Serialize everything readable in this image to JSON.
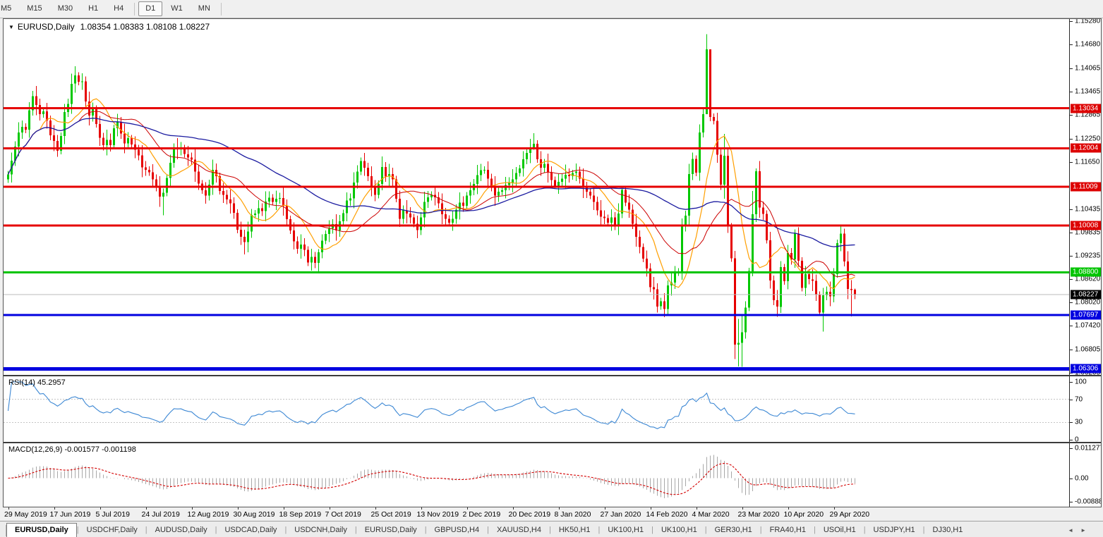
{
  "toolbar": {
    "timeframes": [
      "M5",
      "M15",
      "M30",
      "H1",
      "H4",
      "D1",
      "W1",
      "MN"
    ],
    "active": "D1"
  },
  "chart": {
    "symbol": "EURUSD,Daily",
    "ohlc": "1.08354 1.08383 1.08108 1.08227"
  },
  "icons": {
    "dropdown": "▼",
    "scroll_left": "◄",
    "scroll_right": "►"
  },
  "price_axis": {
    "ticks": [
      1.1528,
      1.1468,
      1.14065,
      1.13465,
      1.12865,
      1.1225,
      1.1165,
      1.10435,
      1.09835,
      1.09235,
      1.0862,
      1.0802,
      1.0742,
      1.06805,
      1.06205
    ],
    "badges": [
      {
        "v": 1.13034,
        "color": "#dd0000"
      },
      {
        "v": 1.12004,
        "color": "#dd0000"
      },
      {
        "v": 1.11009,
        "color": "#dd0000"
      },
      {
        "v": 1.10008,
        "color": "#dd0000"
      },
      {
        "v": 1.088,
        "color": "#00c400"
      },
      {
        "v": 1.08227,
        "color": "#000000"
      },
      {
        "v": 1.07697,
        "color": "#0000e0"
      },
      {
        "v": 1.06306,
        "color": "#0000e0"
      }
    ]
  },
  "time_axis": {
    "labels": [
      {
        "i": 0,
        "label": "29 May 2019"
      },
      {
        "i": 13,
        "label": "17 Jun 2019"
      },
      {
        "i": 26,
        "label": "5 Jul 2019"
      },
      {
        "i": 39,
        "label": "24 Jul 2019"
      },
      {
        "i": 52,
        "label": "12 Aug 2019"
      },
      {
        "i": 65,
        "label": "30 Aug 2019"
      },
      {
        "i": 78,
        "label": "18 Sep 2019"
      },
      {
        "i": 91,
        "label": "7 Oct 2019"
      },
      {
        "i": 104,
        "label": "25 Oct 2019"
      },
      {
        "i": 117,
        "label": "13 Nov 2019"
      },
      {
        "i": 130,
        "label": "2 Dec 2019"
      },
      {
        "i": 143,
        "label": "20 Dec 2019"
      },
      {
        "i": 156,
        "label": "8 Jan 2020"
      },
      {
        "i": 169,
        "label": "27 Jan 2020"
      },
      {
        "i": 182,
        "label": "14 Feb 2020"
      },
      {
        "i": 195,
        "label": "4 Mar 2020"
      },
      {
        "i": 208,
        "label": "23 Mar 2020"
      },
      {
        "i": 221,
        "label": "10 Apr 2020"
      },
      {
        "i": 234,
        "label": "29 Apr 2020"
      }
    ]
  },
  "rsi": {
    "label": "RSI(14)",
    "value": "45.2957",
    "color": "#3d88d4",
    "levels": [
      70,
      30
    ],
    "scale": [
      {
        "v": 100,
        "label": "100"
      },
      {
        "v": 70,
        "label": "70"
      },
      {
        "v": 30,
        "label": "30"
      },
      {
        "v": 0,
        "label": "0"
      }
    ]
  },
  "macd": {
    "label": "MACD(12,26,9)",
    "values": "-0.001577 -0.001198",
    "hist_color": "#a8a8a8",
    "signal_color": "#d40000",
    "scale": [
      {
        "v": 0.011277,
        "label": "0.011277"
      },
      {
        "v": 0,
        "label": "0.00"
      },
      {
        "v": -0.0088845,
        "label": "-0.0088845"
      }
    ]
  },
  "tabs": [
    {
      "label": "EURUSD,Daily",
      "active": true
    },
    {
      "label": "USDCHF,Daily",
      "active": false
    },
    {
      "label": "AUDUSD,Daily",
      "active": false
    },
    {
      "label": "USDCAD,Daily",
      "active": false
    },
    {
      "label": "USDCNH,Daily",
      "active": false
    },
    {
      "label": "EURUSD,Daily",
      "active": false
    },
    {
      "label": "GBPUSD,H4",
      "active": false
    },
    {
      "label": "XAUUSD,H4",
      "active": false
    },
    {
      "label": "HK50,H1",
      "active": false
    },
    {
      "label": "UK100,H1",
      "active": false
    },
    {
      "label": "UK100,H1",
      "active": false
    },
    {
      "label": "GER30,H1",
      "active": false
    },
    {
      "label": "FRA40,H1",
      "active": false
    },
    {
      "label": "USOil,H1",
      "active": false
    },
    {
      "label": "USDJPY,H1",
      "active": false
    },
    {
      "label": "DJ30,H1",
      "active": false
    }
  ],
  "chart_data": {
    "type": "candlestick",
    "symbol": "EURUSD",
    "timeframe": "Daily",
    "title": "EURUSD,Daily 1.08354 1.08383 1.08108 1.08227",
    "price_range": {
      "top": 1.1534,
      "bottom": 1.0615
    },
    "up_color": "#00c800",
    "down_color": "#e60000",
    "first_open": 1.112,
    "last_open": 1.08354,
    "closes": [
      1.1133,
      1.1168,
      1.1205,
      1.1241,
      1.1256,
      1.1248,
      1.1298,
      1.1335,
      1.1312,
      1.1288,
      1.1296,
      1.1272,
      1.1234,
      1.1219,
      1.1194,
      1.1232,
      1.1294,
      1.1315,
      1.1367,
      1.1388,
      1.1372,
      1.1373,
      1.1321,
      1.1285,
      1.1302,
      1.1263,
      1.1227,
      1.1208,
      1.1222,
      1.1208,
      1.1252,
      1.1268,
      1.1238,
      1.1213,
      1.1226,
      1.121,
      1.1196,
      1.1182,
      1.1151,
      1.1145,
      1.1138,
      1.112,
      1.1102,
      1.1075,
      1.1085,
      1.1124,
      1.1163,
      1.12,
      1.1198,
      1.12,
      1.1185,
      1.1176,
      1.1171,
      1.114,
      1.1109,
      1.1092,
      1.1078,
      1.1106,
      1.1145,
      1.1128,
      1.109,
      1.108,
      1.1068,
      1.1058,
      1.1034,
      1.099,
      1.0972,
      1.0958,
      1.0985,
      1.1028,
      1.1032,
      1.1045,
      1.1038,
      1.1063,
      1.1073,
      1.1062,
      1.107,
      1.1072,
      1.1052,
      1.1017,
      1.0988,
      1.096,
      1.0941,
      1.0952,
      1.0938,
      1.0905,
      1.092,
      1.0904,
      1.0932,
      1.0962,
      1.0979,
      1.0993,
      1.1004,
      1.0988,
      1.1012,
      1.1033,
      1.1065,
      1.1071,
      1.1112,
      1.114,
      1.1167,
      1.115,
      1.1128,
      1.1102,
      1.108,
      1.1108,
      1.1152,
      1.1127,
      1.1134,
      1.112,
      1.107,
      1.1018,
      1.104,
      1.1032,
      1.1022,
      1.1005,
      1.0989,
      1.1022,
      1.1062,
      1.1074,
      1.108,
      1.1074,
      1.1058,
      1.103,
      1.1018,
      1.1008,
      1.1018,
      1.1042,
      1.106,
      1.1052,
      1.1078,
      1.1092,
      1.1108,
      1.1131,
      1.1144,
      1.1145,
      1.1122,
      1.1102,
      1.1078,
      1.1088,
      1.1092,
      1.1105,
      1.1112,
      1.112,
      1.1136,
      1.1148,
      1.1172,
      1.1188,
      1.1199,
      1.1212,
      1.1172,
      1.115,
      1.116,
      1.1138,
      1.1118,
      1.1104,
      1.1114,
      1.1122,
      1.1132,
      1.1128,
      1.1136,
      1.114,
      1.1122,
      1.1098,
      1.1088,
      1.1078,
      1.1062,
      1.104,
      1.1024,
      1.102,
      1.1008,
      1.1022,
      1.1002,
      1.1032,
      1.1093,
      1.106,
      1.1042,
      1.1005,
      1.0972,
      1.0945,
      1.0915,
      1.089,
      1.0842,
      1.0836,
      1.0792,
      1.0805,
      1.0785,
      1.0846,
      1.0853,
      1.088,
      1.0882,
      1.0998,
      1.1026,
      1.1134,
      1.1173,
      1.1137,
      1.1241,
      1.1288,
      1.1456,
      1.1281,
      1.1271,
      1.1184,
      1.1106,
      1.1181,
      1.0998,
      1.0916,
      1.0693,
      1.0698,
      1.0725,
      1.0789,
      1.0883,
      1.103,
      1.1141,
      1.1047,
      1.1031,
      1.0963,
      1.0859,
      1.0808,
      1.0791,
      1.0893,
      1.0857,
      1.093,
      1.0913,
      1.098,
      1.091,
      1.084,
      1.0875,
      1.0862,
      1.0858,
      1.0822,
      1.0776,
      1.0821,
      1.083,
      1.0818,
      1.0875,
      1.0955,
      1.098,
      1.0908,
      1.0837,
      1.0834,
      1.08227
    ],
    "wick_cycle": [
      0.0009,
      0.0021,
      0.0013,
      0.0026,
      0.0016
    ],
    "wick_overrides": {
      "19": [
        1.1412,
        1.1344
      ],
      "44": [
        1.1096,
        1.1027
      ],
      "67": [
        1.099,
        1.0926
      ],
      "88": [
        1.094,
        1.0879
      ],
      "106": [
        1.1179,
        1.1092
      ],
      "149": [
        1.1239,
        1.1196
      ],
      "174": [
        1.1096,
        1.102
      ],
      "198": [
        1.1495,
        1.1289
      ],
      "199": [
        1.136,
        1.127
      ],
      "203": [
        1.1237,
        1.107
      ],
      "206": [
        1.0935,
        1.0656
      ],
      "207": [
        1.076,
        1.0637
      ],
      "208": [
        1.077,
        1.0636
      ],
      "211": [
        1.109,
        1.087
      ],
      "212": [
        1.1148,
        1.101
      ],
      "223": [
        1.0991,
        1.0892
      ],
      "231": [
        1.084,
        1.0727
      ],
      "239": [
        1.086,
        1.0766
      ],
      "240": [
        1.08383,
        1.08108
      ]
    },
    "moving_averages": [
      {
        "period": 10,
        "color": "#ff9f00",
        "width": 1.2
      },
      {
        "period": 21,
        "color": "#cc0000",
        "width": 1
      },
      {
        "period": 55,
        "color": "#1b1ba0",
        "width": 1.3
      }
    ],
    "hlines": [
      {
        "v": 1.13034,
        "color": "#e60000",
        "w": 3
      },
      {
        "v": 1.12004,
        "color": "#e60000",
        "w": 3
      },
      {
        "v": 1.11009,
        "color": "#e60000",
        "w": 3
      },
      {
        "v": 1.10008,
        "color": "#e60000",
        "w": 3
      },
      {
        "v": 1.088,
        "color": "#00c400",
        "w": 3
      },
      {
        "v": 1.07697,
        "color": "#0000e0",
        "w": 3
      },
      {
        "v": 1.06306,
        "color": "#0000e0",
        "w": 5
      },
      {
        "v": 1.08227,
        "color": "#bbbbbb",
        "w": 1
      }
    ],
    "indicators": {
      "rsi_period": 14,
      "macd": [
        12,
        26,
        9
      ]
    }
  }
}
